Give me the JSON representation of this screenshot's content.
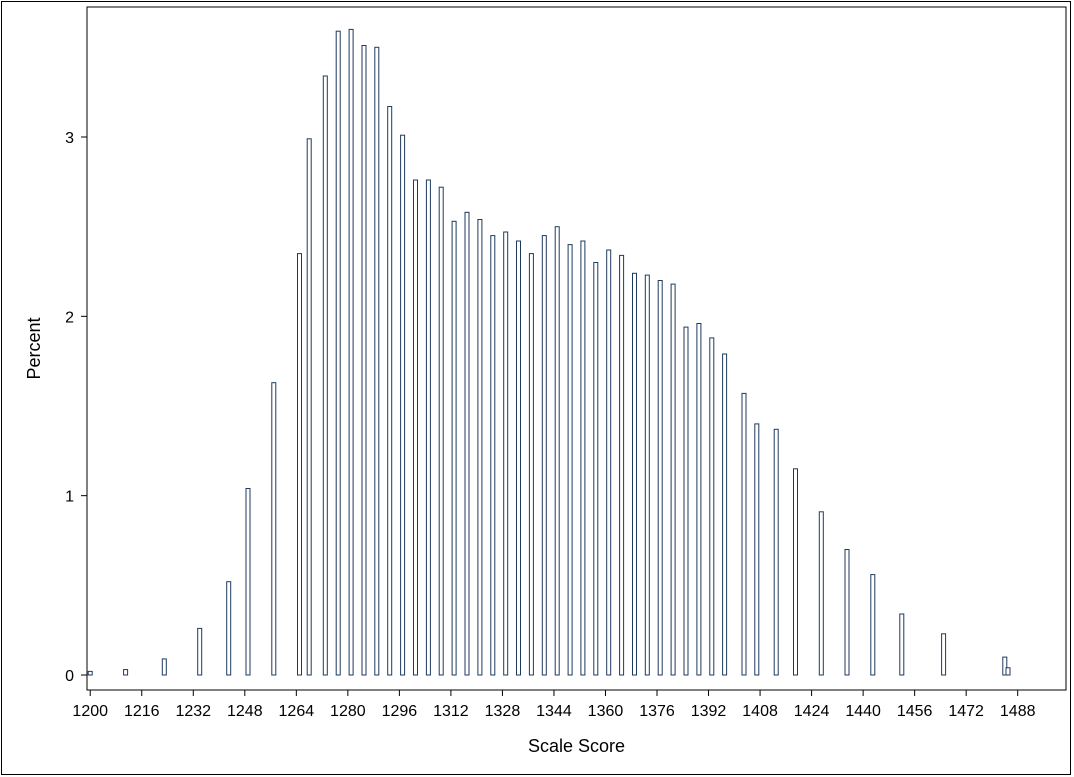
{
  "chart_data": {
    "type": "bar",
    "title": "",
    "xlabel": "Scale Score",
    "ylabel": "Percent",
    "xlim": [
      1199,
      1503
    ],
    "ylim": [
      0,
      3.65
    ],
    "grid": false,
    "legend": "none",
    "x_ticks": [
      1200,
      1216,
      1232,
      1248,
      1264,
      1280,
      1296,
      1312,
      1328,
      1344,
      1360,
      1376,
      1392,
      1408,
      1424,
      1440,
      1456,
      1472,
      1488
    ],
    "y_ticks": [
      0,
      1,
      2,
      3
    ],
    "bar_color": "#FFFFFF",
    "bar_edge_color": "#1F3A5F",
    "x": [
      1200,
      1211,
      1223,
      1234,
      1243,
      1249,
      1257,
      1265,
      1268,
      1273,
      1277,
      1281,
      1285,
      1289,
      1293,
      1297,
      1301,
      1305,
      1309,
      1313,
      1317,
      1321,
      1325,
      1329,
      1333,
      1337,
      1341,
      1345,
      1349,
      1353,
      1357,
      1361,
      1365,
      1369,
      1373,
      1377,
      1381,
      1385,
      1389,
      1393,
      1397,
      1403,
      1407,
      1413,
      1419,
      1427,
      1435,
      1443,
      1452,
      1465,
      1484
    ],
    "values": [
      0.02,
      0.03,
      0.09,
      0.26,
      0.52,
      1.04,
      1.63,
      2.35,
      2.99,
      3.34,
      3.59,
      3.6,
      3.51,
      3.5,
      3.17,
      3.01,
      2.76,
      2.76,
      2.72,
      2.53,
      2.58,
      2.54,
      2.45,
      2.47,
      2.42,
      2.35,
      2.45,
      2.5,
      2.4,
      2.42,
      2.3,
      2.37,
      2.34,
      2.24,
      2.23,
      2.2,
      2.18,
      1.94,
      1.96,
      1.88,
      1.79,
      1.57,
      1.4,
      1.37,
      1.15,
      0.91,
      0.7,
      0.56,
      0.34,
      0.23,
      0.1
    ]
  },
  "extra_marks": [
    0.04
  ]
}
